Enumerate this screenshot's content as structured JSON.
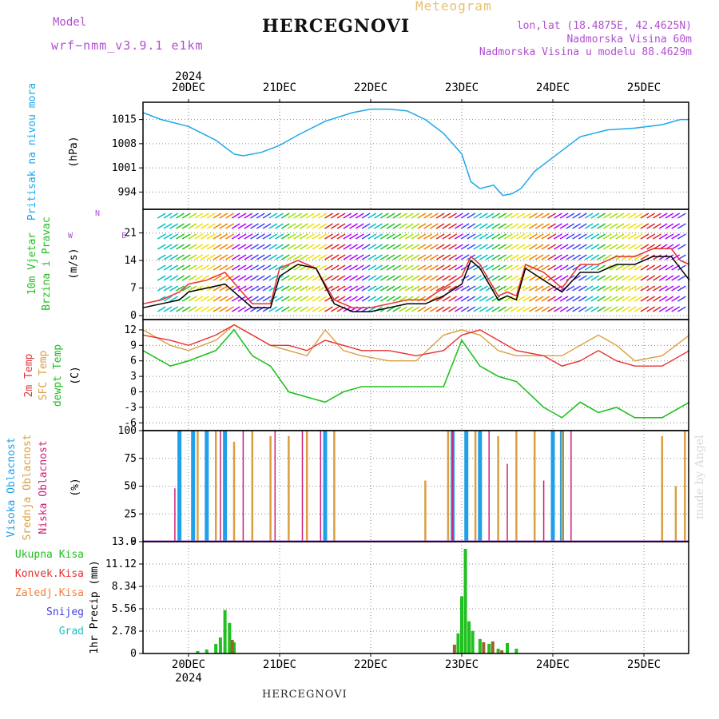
{
  "header": {
    "title": "HERCEGNOVI",
    "meteogram": "Meteogram",
    "model_label": "Model",
    "model_value": "wrf−nmm_v3.9.1 e1km",
    "lonlat": "lon,lat (18.4875E, 42.4625N)",
    "altitude": "Nadmorska Visina 60m",
    "model_altitude": "Nadmorska Visina u modelu 88.4629m"
  },
  "footer": {
    "location": "HERCEGNOVI",
    "made_by": "made by Angel"
  },
  "colors": {
    "pressure": "#1ca8e8",
    "wind_line": "#000000",
    "wind_gust": "#e83030",
    "temp2m": "#e83030",
    "sfc": "#d8a040",
    "dewpt": "#20c020",
    "high_cloud": "#20a0e8",
    "mid_cloud": "#d8a040",
    "low_cloud": "#d0207a",
    "precip_total": "#20c020",
    "precip_conv": "#e83030",
    "frame": "#000000",
    "grid": "#888888"
  },
  "chart_data": [
    {
      "type": "line",
      "panel": "pressure",
      "ylabel": [
        "Pritisak na nivou mora",
        "(hPa)"
      ],
      "yticks": [
        994,
        1001,
        1008,
        1015
      ],
      "ylim": [
        989,
        1020
      ],
      "x_top": [
        "20DEC",
        "21DEC",
        "22DEC",
        "23DEC",
        "24DEC",
        "25DEC"
      ],
      "year": "2024",
      "series": [
        {
          "x": [
            -0.5,
            -0.3,
            0,
            0.3,
            0.5,
            0.6,
            0.8,
            1.0,
            1.2,
            1.5,
            1.8,
            2.0,
            2.2,
            2.4,
            2.6,
            2.8,
            3.0,
            3.1,
            3.2,
            3.35,
            3.45,
            3.55,
            3.65,
            3.8,
            4.0,
            4.3,
            4.6,
            4.9,
            5.2,
            5.4,
            5.5
          ],
          "values": [
            1017,
            1015,
            1013,
            1009,
            1005,
            1004.5,
            1005.5,
            1007.5,
            1010.5,
            1014.5,
            1017,
            1018,
            1018,
            1017.5,
            1015,
            1011,
            1005,
            997,
            995,
            996,
            993,
            993.5,
            995,
            1000,
            1004,
            1010,
            1012,
            1012.5,
            1013.5,
            1015,
            1015
          ]
        }
      ]
    },
    {
      "type": "line",
      "panel": "wind",
      "ylabel": [
        "10m Vjetar",
        "Brzina i Pravac",
        "(m/s)"
      ],
      "compass": [
        "N",
        "W",
        "E"
      ],
      "yticks": [
        0,
        7,
        14,
        21
      ],
      "ylim": [
        -1,
        27
      ],
      "series": [
        {
          "name": "wind",
          "x": [
            -0.5,
            -0.3,
            -0.1,
            0,
            0.2,
            0.4,
            0.55,
            0.7,
            0.9,
            1.0,
            1.2,
            1.4,
            1.6,
            1.8,
            2.0,
            2.2,
            2.4,
            2.6,
            2.8,
            3.0,
            3.1,
            3.2,
            3.3,
            3.4,
            3.5,
            3.6,
            3.7,
            3.9,
            4.1,
            4.3,
            4.5,
            4.7,
            4.9,
            5.1,
            5.3,
            5.4,
            5.5
          ],
          "values": [
            2,
            3,
            4,
            6,
            7,
            8,
            5,
            2,
            2,
            10,
            13,
            12,
            3,
            1,
            1,
            2,
            3,
            3,
            5,
            8,
            14,
            12,
            8,
            4,
            5,
            4,
            12,
            9,
            6,
            11,
            11,
            13,
            13,
            15,
            15,
            12,
            9
          ]
        },
        {
          "name": "gust",
          "x": [
            -0.5,
            -0.3,
            -0.1,
            0,
            0.2,
            0.4,
            0.55,
            0.7,
            0.9,
            1.0,
            1.2,
            1.4,
            1.6,
            1.8,
            2.0,
            2.2,
            2.4,
            2.6,
            2.8,
            3.0,
            3.1,
            3.2,
            3.3,
            3.4,
            3.5,
            3.6,
            3.7,
            3.9,
            4.1,
            4.3,
            4.5,
            4.7,
            4.9,
            5.1,
            5.3,
            5.4,
            5.5
          ],
          "values": [
            3,
            4,
            6,
            8,
            9,
            11,
            7,
            3,
            3,
            12,
            14,
            12,
            4,
            2,
            2,
            3,
            4,
            4,
            7,
            10,
            15,
            13,
            9,
            5,
            6,
            5,
            13,
            11,
            7,
            13,
            13,
            15,
            15,
            17,
            17,
            14,
            13
          ]
        }
      ]
    },
    {
      "type": "line",
      "panel": "temperature",
      "ylabel": [
        "2m Temp",
        "SFC Temp",
        "dewpt Temp",
        "(C)"
      ],
      "yticks": [
        -6,
        -3,
        0,
        3,
        6,
        9,
        12
      ],
      "ylim": [
        -7.5,
        14
      ],
      "series": [
        {
          "name": "2m Temp",
          "x": [
            -0.5,
            -0.2,
            0,
            0.3,
            0.5,
            0.7,
            0.9,
            1.1,
            1.3,
            1.5,
            1.7,
            1.9,
            2.2,
            2.5,
            2.8,
            3.0,
            3.2,
            3.4,
            3.6,
            3.9,
            4.1,
            4.3,
            4.5,
            4.7,
            4.9,
            5.2,
            5.5
          ],
          "values": [
            11,
            10,
            9,
            11,
            13,
            11,
            9,
            9,
            8,
            10,
            9,
            8,
            8,
            7,
            8,
            11,
            12,
            10,
            8,
            7,
            5,
            6,
            8,
            6,
            5,
            5,
            8
          ]
        },
        {
          "name": "SFC Temp",
          "x": [
            -0.5,
            -0.2,
            0,
            0.3,
            0.5,
            0.7,
            0.9,
            1.1,
            1.3,
            1.5,
            1.7,
            1.9,
            2.2,
            2.5,
            2.8,
            3.0,
            3.2,
            3.4,
            3.6,
            3.9,
            4.1,
            4.3,
            4.5,
            4.7,
            4.9,
            5.2,
            5.5
          ],
          "values": [
            12,
            9,
            8,
            10,
            13,
            11,
            9,
            8,
            7,
            12,
            8,
            7,
            6,
            6,
            11,
            12,
            11,
            8,
            7,
            7,
            7,
            9,
            11,
            9,
            6,
            7,
            11
          ]
        },
        {
          "name": "dewpt Temp",
          "x": [
            -0.5,
            -0.2,
            0,
            0.3,
            0.5,
            0.7,
            0.9,
            1.1,
            1.3,
            1.5,
            1.7,
            1.9,
            2.2,
            2.5,
            2.8,
            3.0,
            3.2,
            3.4,
            3.6,
            3.9,
            4.1,
            4.3,
            4.5,
            4.7,
            4.9,
            5.2,
            5.5
          ],
          "values": [
            8,
            5,
            6,
            8,
            12,
            7,
            5,
            0,
            -1,
            -2,
            0,
            1,
            1,
            1,
            1,
            10,
            5,
            3,
            2,
            -3,
            -5,
            -2,
            -4,
            -3,
            -5,
            -5,
            -2
          ]
        }
      ]
    },
    {
      "type": "bar",
      "panel": "clouds",
      "ylabel": [
        "Visoka Oblacnost",
        "Srednja Oblacnost",
        "Niska Oblacnost",
        "(%)"
      ],
      "yticks": [
        0,
        25,
        50,
        75,
        100
      ],
      "ylim": [
        0,
        100
      ],
      "series": [
        {
          "name": "high",
          "x": [
            -0.1,
            0.05,
            0.2,
            0.4,
            1.5,
            2.9,
            3.05,
            3.2,
            4.0,
            4.1
          ],
          "values": [
            100,
            100,
            100,
            100,
            100,
            100,
            100,
            100,
            100,
            100
          ]
        },
        {
          "name": "mid",
          "x": [
            0.1,
            0.3,
            0.5,
            0.7,
            0.9,
            1.1,
            1.3,
            1.6,
            2.6,
            2.85,
            3.15,
            3.4,
            3.6,
            3.8,
            4.1,
            5.2,
            5.35,
            5.45
          ],
          "values": [
            100,
            100,
            90,
            100,
            95,
            95,
            100,
            100,
            55,
            100,
            100,
            95,
            100,
            100,
            100,
            95,
            50,
            100
          ]
        },
        {
          "name": "low",
          "x": [
            -0.15,
            0.35,
            0.6,
            0.95,
            1.25,
            1.45,
            2.9,
            3.3,
            3.5,
            3.9,
            4.2
          ],
          "values": [
            48,
            100,
            100,
            100,
            100,
            100,
            100,
            100,
            70,
            55,
            100
          ]
        }
      ]
    },
    {
      "type": "bar",
      "panel": "precipitation",
      "ylabel": [
        "1hr Precip (mm)"
      ],
      "legend": [
        "Ukupna Kisa",
        "Konvek.Kisa",
        "Zaledj.Kisa",
        "Snijeg",
        "Grad"
      ],
      "yticks": [
        0,
        2.78,
        5.56,
        8.34,
        11.12,
        13.9
      ],
      "ylim": [
        0,
        13.9
      ],
      "x_bottom": [
        "20DEC",
        "21DEC",
        "22DEC",
        "23DEC",
        "24DEC",
        "25DEC"
      ],
      "year": "2024",
      "series": [
        {
          "name": "Ukupna Kisa",
          "x": [
            0.1,
            0.2,
            0.3,
            0.35,
            0.4,
            0.45,
            0.5,
            2.96,
            3.0,
            3.04,
            3.08,
            3.12,
            3.2,
            3.3,
            3.4,
            3.5,
            3.6
          ],
          "values": [
            0.3,
            0.5,
            1.2,
            2.0,
            5.4,
            3.8,
            1.4,
            2.5,
            7.1,
            13.0,
            4.0,
            2.8,
            1.8,
            1.2,
            0.6,
            1.3,
            0.6
          ]
        },
        {
          "name": "Konvek.Kisa",
          "x": [
            0.48,
            2.92,
            3.24,
            3.34,
            3.44
          ],
          "values": [
            1.7,
            1.1,
            1.4,
            1.5,
            0.4
          ]
        }
      ]
    }
  ]
}
